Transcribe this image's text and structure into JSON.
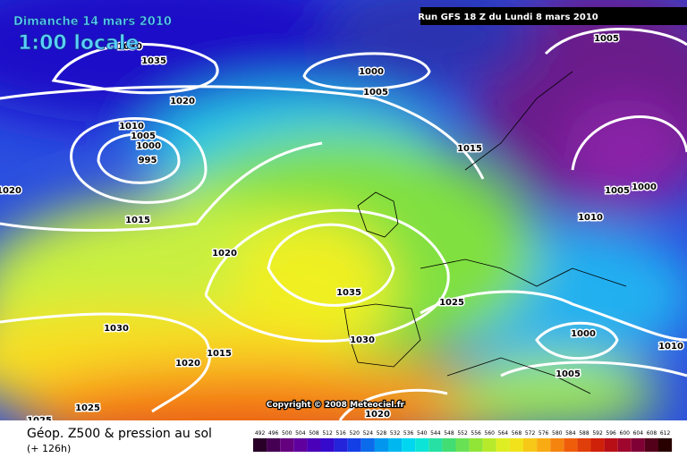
{
  "header": {
    "title": "Dimanche 14 mars 2010",
    "time": "1:00 locale",
    "run": "Run GFS 18 Z du Lundi 8 mars 2010"
  },
  "isobar_labels": [
    "1030",
    "1035",
    "1000",
    "1005",
    "1005",
    "1020",
    "1010",
    "1005",
    "1000",
    "995",
    "1015",
    "1005",
    "1000",
    "1020",
    "1010",
    "1015",
    "1020",
    "1035",
    "1025",
    "1030",
    "1030",
    "1000",
    "1010",
    "1015",
    "1020",
    "1005",
    "1025",
    "1025",
    "1020"
  ],
  "copyright": "Copyright © 2008 Meteociel.fr",
  "footer": {
    "title": "Géop. Z500 & pression au sol",
    "lead": "(+ 126h)"
  },
  "legend": [
    492,
    496,
    500,
    504,
    508,
    512,
    516,
    520,
    524,
    528,
    532,
    536,
    540,
    544,
    548,
    552,
    556,
    560,
    564,
    568,
    572,
    576,
    580,
    584,
    588,
    592,
    596,
    600,
    604,
    608,
    612
  ]
}
